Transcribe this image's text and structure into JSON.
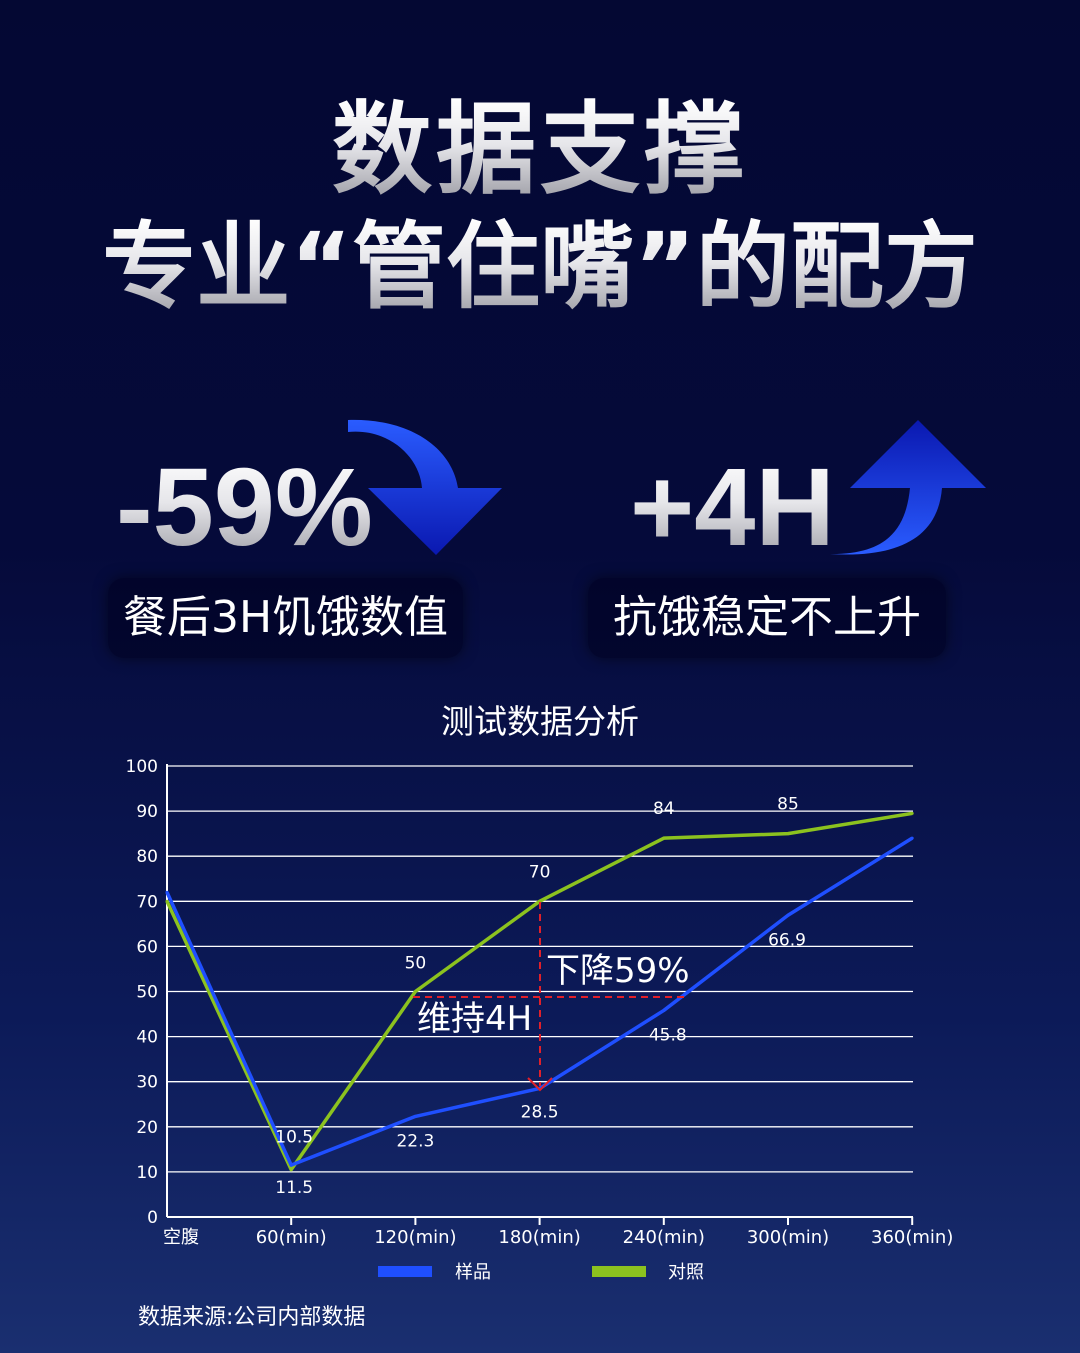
{
  "header": {
    "title": "数据支撑",
    "subtitle": "专业“管住嘴”的配方"
  },
  "stats": [
    {
      "value": "-59%",
      "label": "餐后3H饥饿数值",
      "icon": "arrow-down-icon"
    },
    {
      "value": "+4H",
      "label": "抗饿稳定不上升",
      "icon": "arrow-up-icon"
    }
  ],
  "colors": {
    "sample": "#1f4fff",
    "control": "#8cc21f",
    "annotation": "#e0202a",
    "arrow": "#1a4cff"
  },
  "chart_data": {
    "type": "line",
    "title": "测试数据分析",
    "categories": [
      "空腹",
      "60(min)",
      "120(min)",
      "180(min)",
      "240(min)",
      "300(min)",
      "360(min)"
    ],
    "ylim": [
      0,
      100
    ],
    "yticks": [
      0,
      10,
      20,
      30,
      40,
      50,
      60,
      70,
      80,
      90,
      100
    ],
    "grid": true,
    "legend_position": "bottom",
    "series": [
      {
        "name": "样品",
        "color": "#1f4fff",
        "values": [
          72,
          11.5,
          22.3,
          28.5,
          45.8,
          66.9,
          84
        ],
        "labels": [
          "",
          "11.5",
          "22.3",
          "28.5",
          "45.8",
          "66.9",
          ""
        ]
      },
      {
        "name": "对照",
        "color": "#8cc21f",
        "values": [
          70,
          10.5,
          50,
          70,
          84,
          85,
          89.5
        ],
        "labels": [
          "",
          "10.5",
          "50",
          "70",
          "84",
          "85",
          ""
        ]
      }
    ],
    "annotations": [
      "下降59%",
      "维持4H"
    ]
  },
  "source": "数据来源:公司内部数据"
}
